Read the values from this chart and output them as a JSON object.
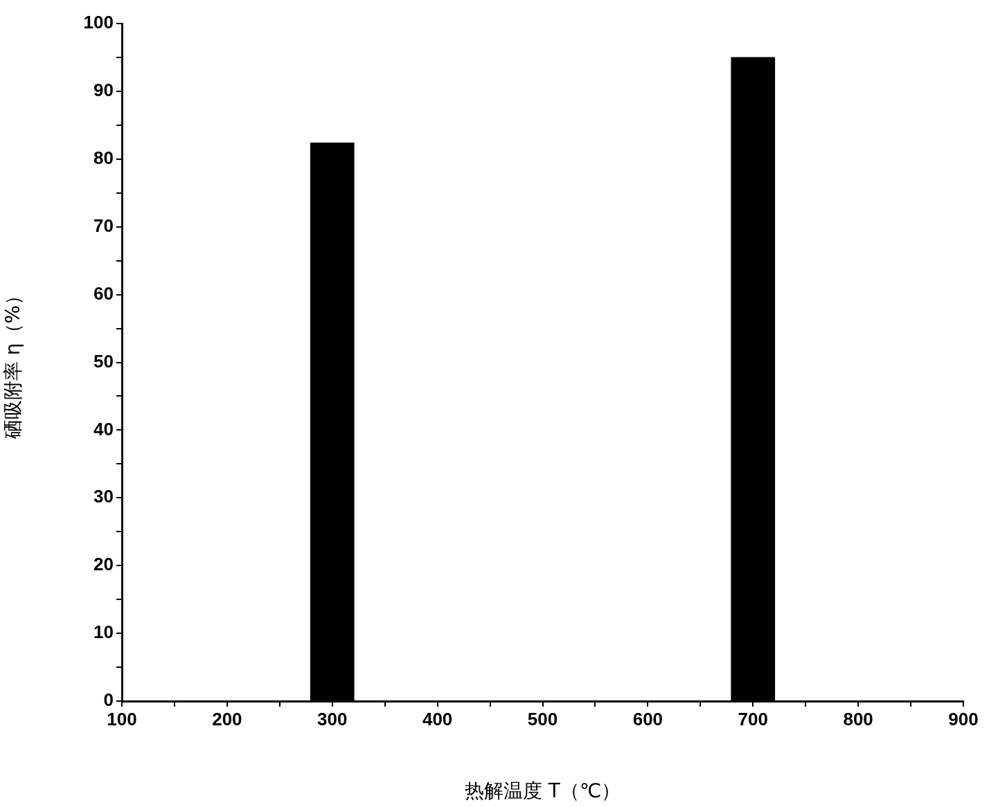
{
  "chart_data": {
    "type": "bar",
    "xlabel": "热解温度 T（℃）",
    "ylabel": "硒吸附率 η（%）",
    "x": [
      300,
      700
    ],
    "values": [
      82.4,
      95.0
    ],
    "color": "#000000",
    "xlim": [
      100,
      900
    ],
    "xticks": [
      100,
      {
        "value": 150,
        "label": null
      },
      200,
      {
        "value": 250,
        "label": null
      },
      300,
      {
        "value": 350,
        "label": null
      },
      400,
      {
        "value": 450,
        "label": null
      },
      500,
      {
        "value": 550,
        "label": null
      },
      600,
      {
        "value": 650,
        "label": null
      },
      700,
      {
        "value": 750,
        "label": null
      },
      800,
      {
        "value": 850,
        "label": null
      },
      900
    ],
    "ylim": [
      0,
      100
    ],
    "yticks": [
      0,
      {
        "value": 5,
        "label": null
      },
      10,
      {
        "value": 15,
        "label": null
      },
      20,
      {
        "value": 25,
        "label": null
      },
      30,
      {
        "value": 35,
        "label": null
      },
      40,
      {
        "value": 45,
        "label": null
      },
      50,
      {
        "value": 55,
        "label": null
      },
      60,
      {
        "value": 65,
        "label": null
      },
      70,
      {
        "value": 75,
        "label": null
      },
      80,
      {
        "value": 85,
        "label": null
      },
      90,
      {
        "value": 95,
        "label": null
      },
      100
    ],
    "grid": false,
    "legend": false
  }
}
